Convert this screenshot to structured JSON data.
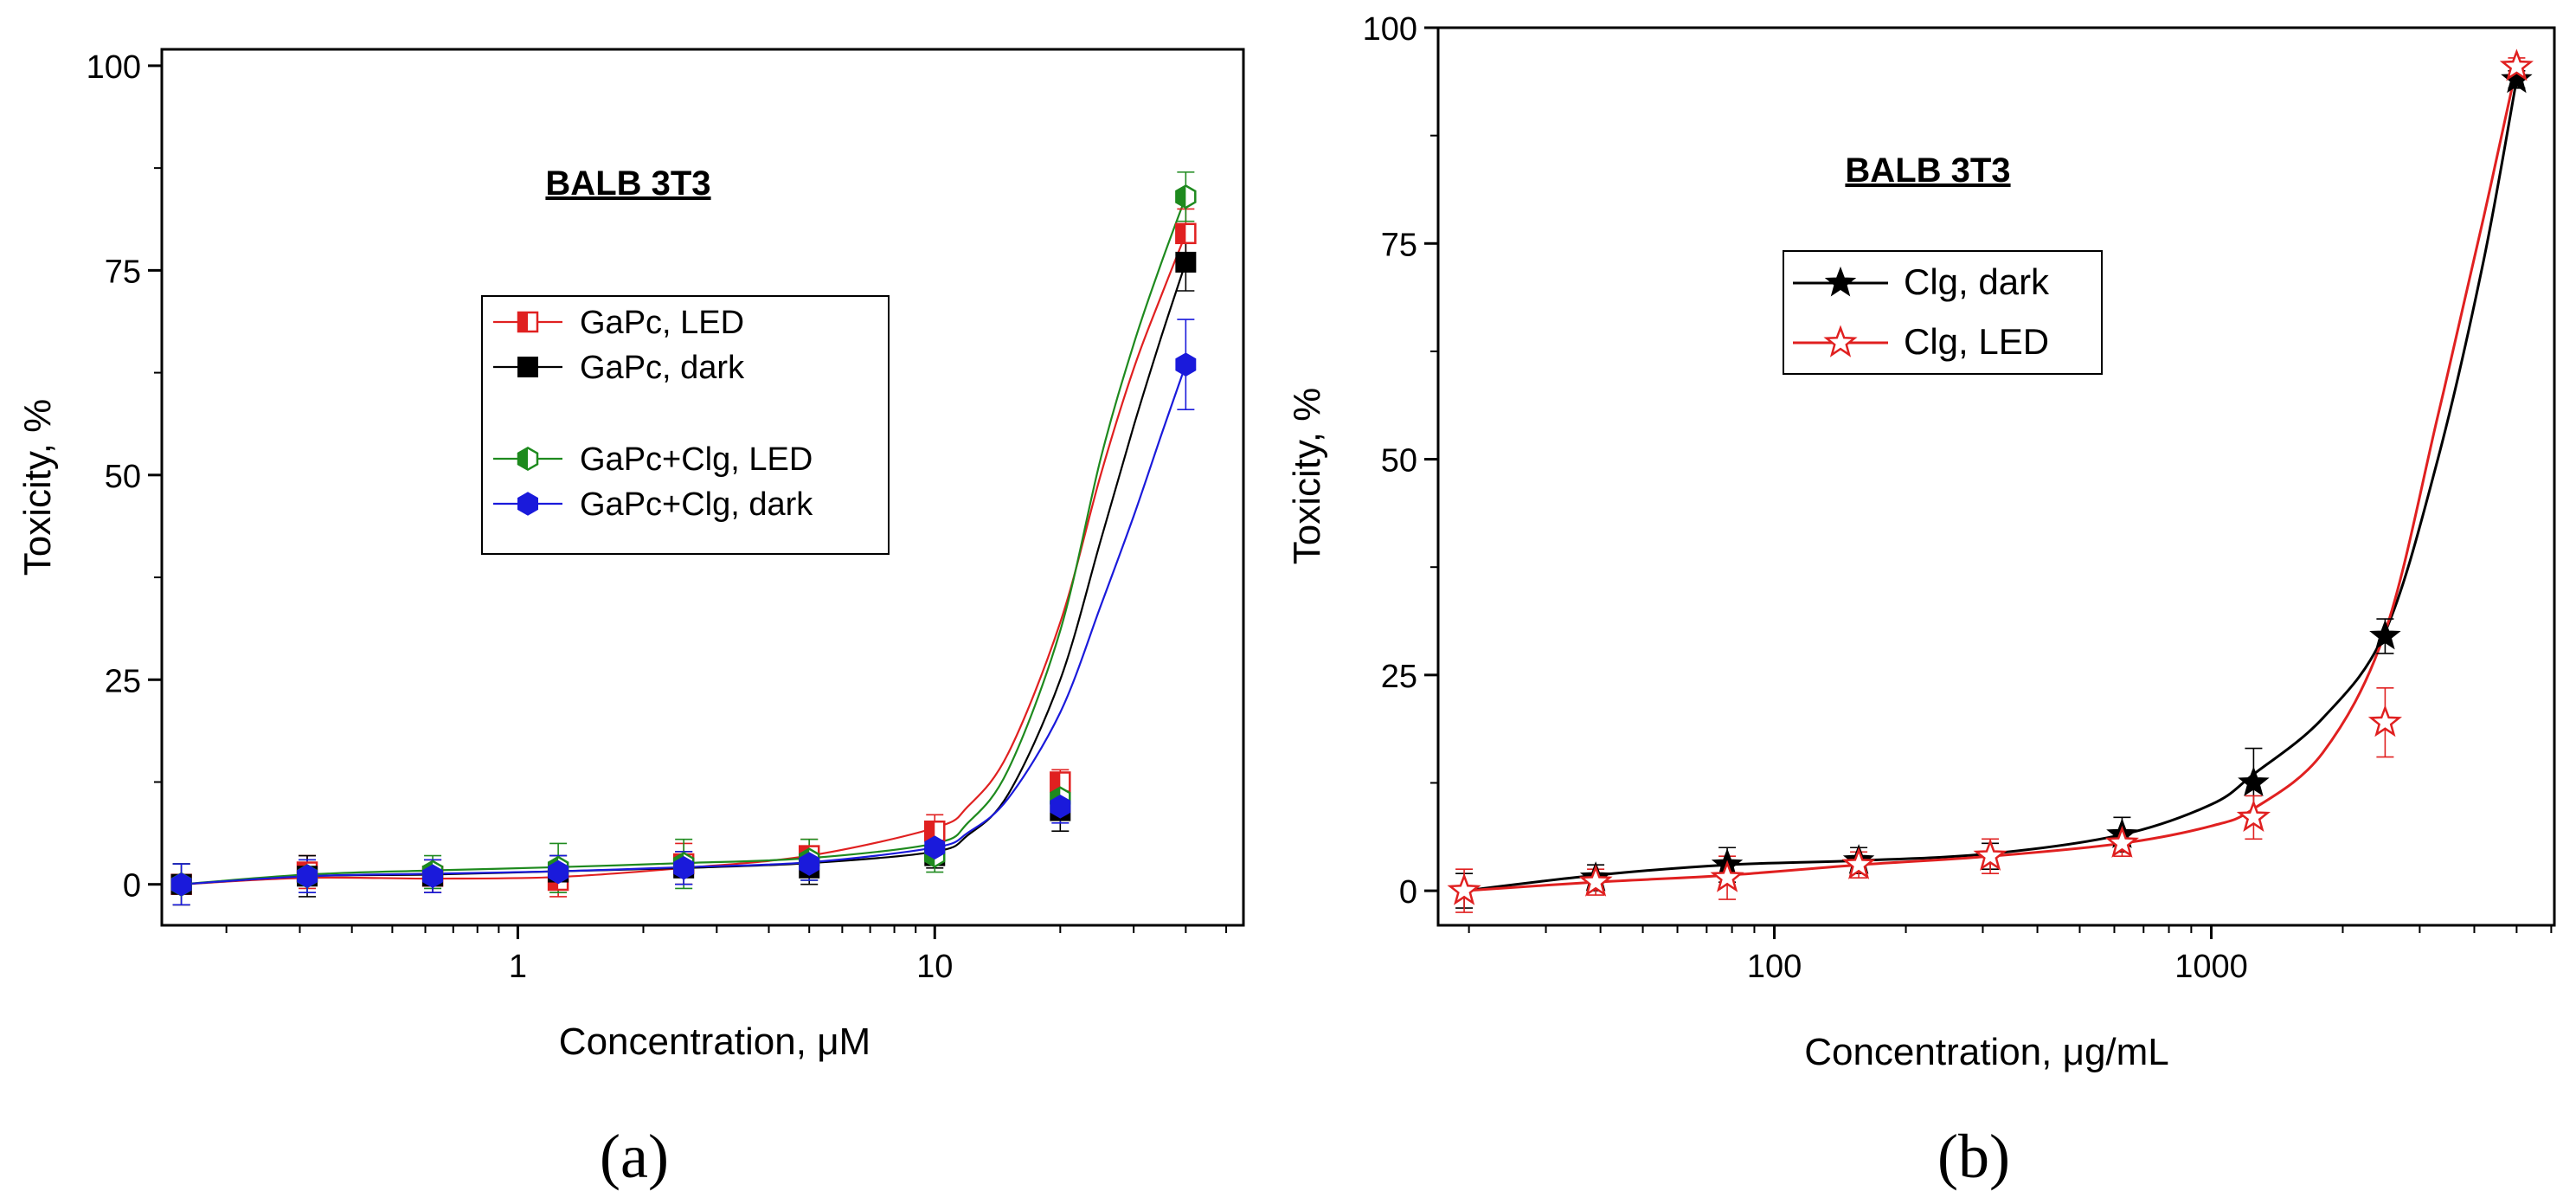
{
  "panels": [
    {
      "id": "a",
      "panel_label": "(a)",
      "chart_data": {
        "type": "scatter",
        "title": "BALB 3T3",
        "xlabel": "Concentration, μM",
        "ylabel": "Toxicity, %",
        "xscale": "log",
        "xlim": [
          0.14,
          55
        ],
        "ylim": [
          -5,
          102
        ],
        "xticks": [
          1,
          10
        ],
        "xtick_labels": [
          "1",
          "10"
        ],
        "yticks": [
          0,
          25,
          50,
          75,
          100
        ],
        "ytick_labels": [
          "0",
          "25",
          "50",
          "75",
          "100"
        ],
        "legend_position": "center-left",
        "series": [
          {
            "name": "GaPc, LED",
            "color": "#e02020",
            "marker": "square-half-filled",
            "x": [
              0.156,
              0.3125,
              0.625,
              1.25,
              2.5,
              5,
              10,
              20,
              40
            ],
            "y": [
              0,
              1.5,
              1,
              0.5,
              2.5,
              3.5,
              6.5,
              12.5,
              79.5
            ],
            "yerr": [
              2.5,
              2,
              2,
              2,
              2.5,
              2,
              2,
              1.5,
              3
            ],
            "fit": [
              [
                0.156,
                0.0
              ],
              [
                0.3125,
                0.8
              ],
              [
                0.625,
                0.7
              ],
              [
                1.25,
                0.9
              ],
              [
                2.5,
                2.0
              ],
              [
                5,
                3.5
              ],
              [
                10,
                6.9
              ],
              [
                12,
                9.5
              ],
              [
                15,
                16
              ],
              [
                20,
                32
              ],
              [
                25,
                50
              ],
              [
                30,
                63
              ],
              [
                35,
                72
              ],
              [
                40,
                79.5
              ]
            ]
          },
          {
            "name": "GaPc, dark",
            "color": "#000000",
            "marker": "square-filled",
            "x": [
              0.156,
              0.3125,
              0.625,
              1.25,
              2.5,
              5,
              10,
              20,
              40
            ],
            "y": [
              0,
              1,
              1,
              1.5,
              2,
              2,
              3.5,
              9,
              76
            ],
            "yerr": [
              2.5,
              2.5,
              2,
              2,
              2,
              2,
              1.5,
              2.5,
              3.5
            ],
            "fit": [
              [
                0.156,
                0.0
              ],
              [
                0.3125,
                1.0
              ],
              [
                0.625,
                1.2
              ],
              [
                1.25,
                1.6
              ],
              [
                2.5,
                2.0
              ],
              [
                5,
                2.6
              ],
              [
                10,
                4.0
              ],
              [
                12,
                6.0
              ],
              [
                15,
                11
              ],
              [
                20,
                25
              ],
              [
                25,
                42
              ],
              [
                30,
                56
              ],
              [
                35,
                67
              ],
              [
                40,
                76
              ]
            ]
          },
          {
            "name": "GaPc+Clg, LED",
            "color": "#1e8a1e",
            "marker": "hexagon-half-filled",
            "x": [
              0.156,
              0.3125,
              0.625,
              1.25,
              2.5,
              5,
              10,
              20,
              40
            ],
            "y": [
              0,
              1,
              1.5,
              2,
              2.5,
              3,
              3.5,
              10.5,
              84
            ],
            "yerr": [
              2.5,
              2,
              2,
              3,
              3,
              2.5,
              2,
              1.5,
              3
            ],
            "fit": [
              [
                0.156,
                0.0
              ],
              [
                0.3125,
                1.2
              ],
              [
                0.625,
                1.7
              ],
              [
                1.25,
                2.1
              ],
              [
                2.5,
                2.6
              ],
              [
                5,
                3.2
              ],
              [
                10,
                5.0
              ],
              [
                12,
                7.5
              ],
              [
                15,
                14
              ],
              [
                20,
                31
              ],
              [
                25,
                52
              ],
              [
                30,
                66
              ],
              [
                35,
                76
              ],
              [
                40,
                84
              ]
            ]
          },
          {
            "name": "GaPc+Clg, dark",
            "color": "#1a1adb",
            "marker": "hexagon-filled",
            "x": [
              0.156,
              0.3125,
              0.625,
              1.25,
              2.5,
              5,
              10,
              20,
              40
            ],
            "y": [
              0,
              1,
              1,
              1.5,
              2,
              2.5,
              4.5,
              9.5,
              63.5
            ],
            "yerr": [
              2.5,
              2,
              2,
              2,
              2,
              2,
              2,
              2,
              5.5
            ],
            "fit": [
              [
                0.156,
                0.0
              ],
              [
                0.3125,
                1.0
              ],
              [
                0.625,
                1.3
              ],
              [
                1.25,
                1.6
              ],
              [
                2.5,
                2.1
              ],
              [
                5,
                2.7
              ],
              [
                10,
                4.5
              ],
              [
                12,
                6.3
              ],
              [
                15,
                10.5
              ],
              [
                20,
                21
              ],
              [
                25,
                34
              ],
              [
                30,
                45
              ],
              [
                35,
                55
              ],
              [
                40,
                63.5
              ]
            ]
          }
        ]
      }
    },
    {
      "id": "b",
      "panel_label": "(b)",
      "chart_data": {
        "type": "scatter",
        "title": "BALB 3T3",
        "xlabel": "Concentration, μg/mL",
        "ylabel": "Toxicity, %",
        "xscale": "log",
        "xlim": [
          17,
          6100
        ],
        "ylim": [
          -4,
          100
        ],
        "xticks": [
          100,
          1000
        ],
        "xtick_labels": [
          "100",
          "1000"
        ],
        "yticks": [
          0,
          25,
          50,
          75,
          100
        ],
        "ytick_labels": [
          "0",
          "25",
          "50",
          "75",
          "100"
        ],
        "legend_position": "upper-left",
        "series": [
          {
            "name": "Clg, dark",
            "color": "#000000",
            "marker": "star-filled",
            "x": [
              19.5,
              39,
              78,
              156,
              312,
              625,
              1250,
              2500,
              5000
            ],
            "y": [
              0,
              1.5,
              3,
              3.5,
              4,
              6.5,
              12.5,
              29.5,
              94
            ],
            "yerr": [
              2,
              1.5,
              2,
              1.5,
              1.5,
              2,
              4,
              2,
              1
            ],
            "fit": [
              [
                19.5,
                0.0
              ],
              [
                39,
                1.8
              ],
              [
                78,
                3.0
              ],
              [
                156,
                3.5
              ],
              [
                312,
                4.3
              ],
              [
                625,
                6.5
              ],
              [
                1000,
                10
              ],
              [
                1250,
                13.5
              ],
              [
                1800,
                20
              ],
              [
                2500,
                30
              ],
              [
                3300,
                50
              ],
              [
                4200,
                73
              ],
              [
                5000,
                94
              ]
            ]
          },
          {
            "name": "Clg, LED",
            "color": "#e02020",
            "marker": "star-open",
            "x": [
              19.5,
              39,
              78,
              156,
              312,
              625,
              1250,
              2500,
              5000
            ],
            "y": [
              0,
              1,
              1.5,
              3,
              4,
              5.5,
              8.5,
              19.5,
              95.5
            ],
            "yerr": [
              2.5,
              1.5,
              2.5,
              1.5,
              2,
              1.5,
              2.5,
              4,
              1
            ],
            "fit": [
              [
                19.5,
                0.0
              ],
              [
                39,
                1.0
              ],
              [
                78,
                1.8
              ],
              [
                156,
                3.0
              ],
              [
                312,
                4.0
              ],
              [
                625,
                5.5
              ],
              [
                1000,
                7.5
              ],
              [
                1250,
                9.5
              ],
              [
                1800,
                16
              ],
              [
                2500,
                30
              ],
              [
                3300,
                55
              ],
              [
                4200,
                78
              ],
              [
                5000,
                95.5
              ]
            ]
          }
        ]
      }
    }
  ]
}
